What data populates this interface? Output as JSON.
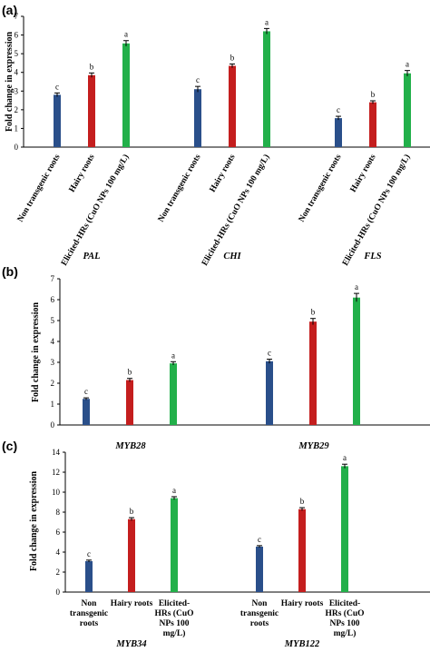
{
  "colors": {
    "non_transgenic": "#2a4f8a",
    "hairy_roots": "#c41e1e",
    "elicited": "#22b04a"
  },
  "chart_data": [
    {
      "panel": "(a)",
      "type": "bar",
      "ylabel": "Fold change in expression",
      "ylim": [
        0,
        7
      ],
      "yticks": [
        "0",
        "1",
        "2",
        "3",
        "4",
        "5",
        "6",
        "7"
      ],
      "series_labels": [
        "Non transgenic roots",
        "Hairy roots",
        "Elicited-HRs (CuO NPs 100 mg/L)"
      ],
      "groups": [
        {
          "name": "PAL",
          "values": [
            2.8,
            3.85,
            5.55
          ],
          "errors": [
            0.1,
            0.12,
            0.15
          ],
          "letters": [
            "c",
            "b",
            "a"
          ]
        },
        {
          "name": "CHI",
          "values": [
            3.1,
            4.35,
            6.2
          ],
          "errors": [
            0.15,
            0.1,
            0.15
          ],
          "letters": [
            "c",
            "b",
            "a"
          ]
        },
        {
          "name": "FLS",
          "values": [
            1.55,
            2.4,
            3.95
          ],
          "errors": [
            0.1,
            0.08,
            0.15
          ],
          "letters": [
            "c",
            "b",
            "a"
          ]
        }
      ]
    },
    {
      "panel": "(b)",
      "type": "bar",
      "ylabel": "Fold change in expression",
      "ylim": [
        0,
        7
      ],
      "yticks": [
        "0",
        "1",
        "2",
        "3",
        "4",
        "5",
        "6",
        "7"
      ],
      "groups": [
        {
          "name": "MYB28",
          "values": [
            1.25,
            2.15,
            2.95
          ],
          "errors": [
            0.05,
            0.08,
            0.08
          ],
          "letters": [
            "c",
            "b",
            "a"
          ]
        },
        {
          "name": "MYB29",
          "values": [
            3.05,
            4.95,
            6.1
          ],
          "errors": [
            0.1,
            0.15,
            0.2
          ],
          "letters": [
            "c",
            "b",
            "a"
          ]
        }
      ]
    },
    {
      "panel": "(c)",
      "type": "bar",
      "ylabel": "Fold change in expression",
      "ylim": [
        0,
        14
      ],
      "yticks": [
        "0",
        "2",
        "4",
        "6",
        "8",
        "10",
        "12",
        "14"
      ],
      "series_labels": [
        "Non transgenic roots",
        "Hairy roots",
        "Elicited-HRs (CuO NPs 100 mg/L)"
      ],
      "groups": [
        {
          "name": "MYB34",
          "values": [
            3.1,
            7.3,
            9.4
          ],
          "errors": [
            0.1,
            0.15,
            0.15
          ],
          "letters": [
            "c",
            "b",
            "a"
          ]
        },
        {
          "name": "MYB122",
          "values": [
            4.55,
            8.3,
            12.6
          ],
          "errors": [
            0.1,
            0.15,
            0.2
          ],
          "letters": [
            "c",
            "b",
            "a"
          ]
        }
      ]
    }
  ]
}
